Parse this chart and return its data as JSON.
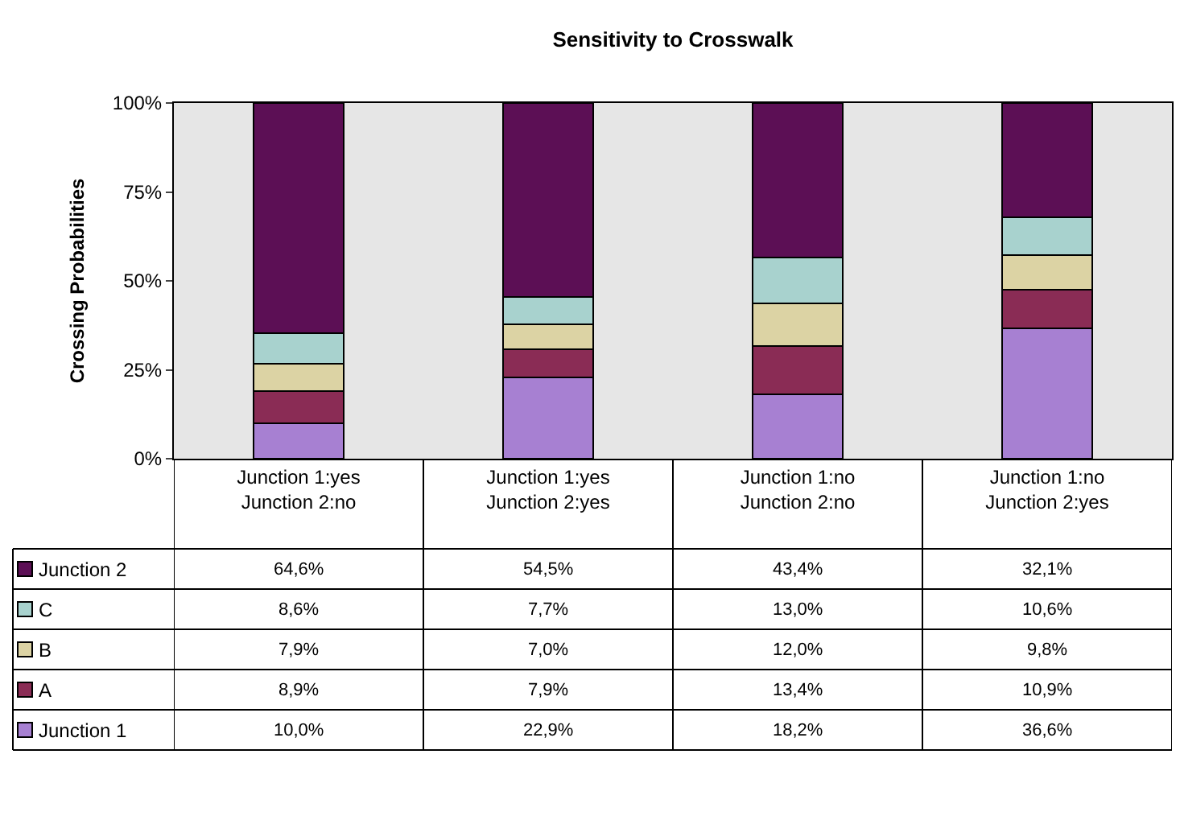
{
  "chart_data": {
    "type": "bar",
    "title": "Sensitivity to Crosswalk",
    "ylabel": "Crossing Probabilities",
    "stacked": true,
    "categories": [
      "Junction 1:yes\nJunction 2:no",
      "Junction 1:yes\nJunction 2:yes",
      "Junction 1:no\nJunction 2:no",
      "Junction 1:no\nJunction 2:yes"
    ],
    "series": [
      {
        "name": "Junction 1",
        "color": "#a780d2",
        "values": [
          10.0,
          22.9,
          18.2,
          36.6
        ],
        "value_labels": [
          "10,0%",
          "22,9%",
          "18,2%",
          "36,6%"
        ]
      },
      {
        "name": "A",
        "color": "#8a2c55",
        "values": [
          8.9,
          7.9,
          13.4,
          10.9
        ],
        "value_labels": [
          "8,9%",
          "7,9%",
          "13,4%",
          "10,9%"
        ]
      },
      {
        "name": "B",
        "color": "#dcd3a4",
        "values": [
          7.9,
          7.0,
          12.0,
          9.8
        ],
        "value_labels": [
          "7,9%",
          "7,0%",
          "12,0%",
          "9,8%"
        ]
      },
      {
        "name": "C",
        "color": "#a8d2ce",
        "values": [
          8.6,
          7.7,
          13.0,
          10.6
        ],
        "value_labels": [
          "8,6%",
          "7,7%",
          "13,0%",
          "10,6%"
        ]
      },
      {
        "name": "Junction 2",
        "color": "#5c0f55",
        "values": [
          64.6,
          54.5,
          43.4,
          32.1
        ],
        "value_labels": [
          "64,6%",
          "54,5%",
          "43,4%",
          "32,1%"
        ]
      }
    ],
    "ylim": [
      0,
      100
    ],
    "yticks": [
      {
        "value": 0,
        "label": "0%"
      },
      {
        "value": 25,
        "label": "25%"
      },
      {
        "value": 50,
        "label": "50%"
      },
      {
        "value": 75,
        "label": "75%"
      },
      {
        "value": 100,
        "label": "100%"
      }
    ],
    "grid": false,
    "legend": "bottom left"
  }
}
